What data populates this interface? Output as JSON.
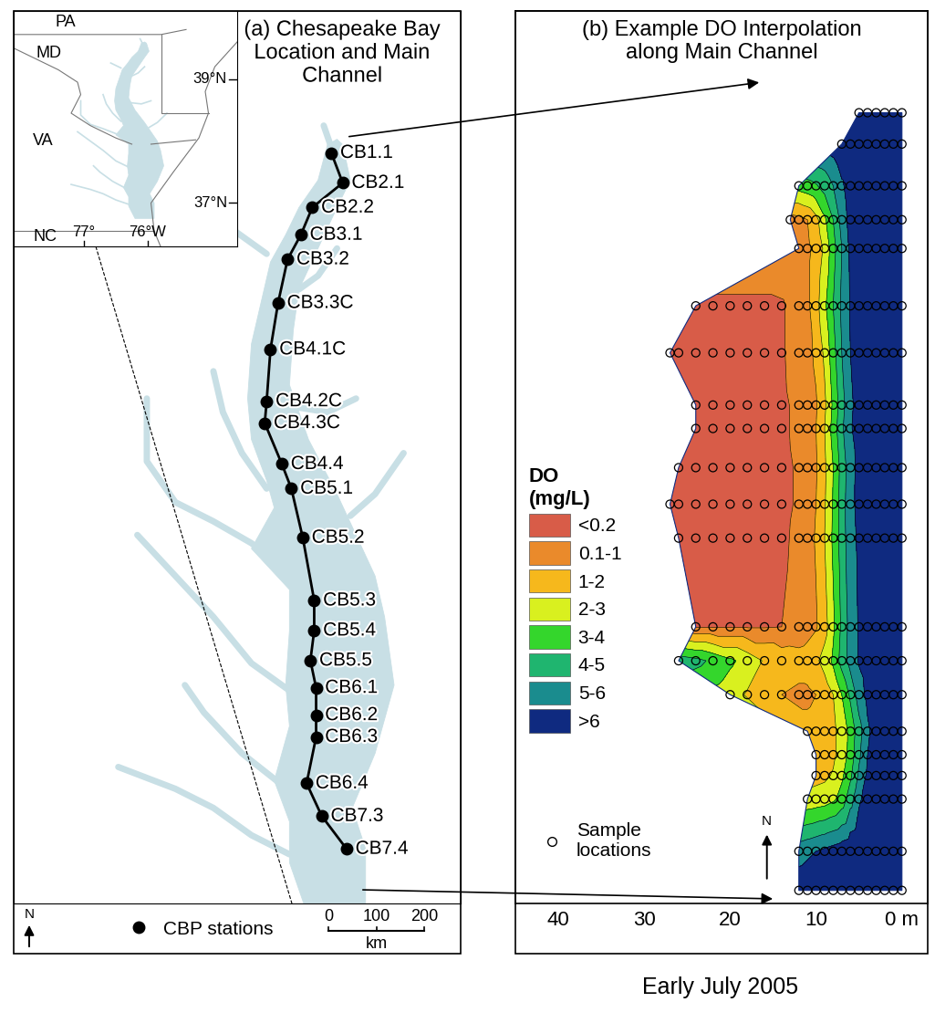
{
  "chart_data": [
    {
      "type": "map",
      "title": "(a) Chesapeake Bay\nLocation and Main\nChannel",
      "xlim": [
        -77.75,
        -75.4
      ],
      "ylim": [
        36.8,
        40.07
      ],
      "tick_labels": false,
      "color": "#c8dfe5",
      "north": "N",
      "stations": {
        "name": "CBP stations",
        "color": "#000000",
        "marker": "o",
        "line_style": "solid",
        "labels": [
          "CB1.1",
          "CB2.1",
          "CB2.2",
          "CB3.1",
          "CB3.2",
          "CB3.3C",
          "CB4.1C",
          "CB4.2C",
          "CB4.3C",
          "CB4.4",
          "CB5.1",
          "CB5.2",
          "CB5.3",
          "CB5.4",
          "CB5.5",
          "CB6.1",
          "CB6.2",
          "CB6.3",
          "CB6.4",
          "CB7.3",
          "CB7.4"
        ],
        "lon": [
          -76.08,
          -76.02,
          -76.18,
          -76.24,
          -76.31,
          -76.36,
          -76.4,
          -76.42,
          -76.43,
          -76.34,
          -76.29,
          -76.23,
          -76.17,
          -76.17,
          -76.19,
          -76.16,
          -76.16,
          -76.16,
          -76.21,
          -76.13,
          -76.0
        ],
        "lat": [
          39.55,
          39.44,
          39.35,
          39.25,
          39.16,
          39.0,
          38.83,
          38.64,
          38.56,
          38.41,
          38.32,
          38.14,
          37.91,
          37.8,
          37.69,
          37.59,
          37.49,
          37.41,
          37.24,
          37.12,
          37.0
        ]
      },
      "inset": {
        "xlim": [
          -78.1,
          -74.6
        ],
        "ylim": [
          36.3,
          40.1
        ],
        "states": [
          "PA",
          "MD",
          "VA",
          "NC"
        ],
        "lat_lines": [
          {
            "value": 39,
            "label": "39°N"
          },
          {
            "value": 37,
            "label": "37°N"
          }
        ],
        "lon_lines": [
          {
            "value": -77,
            "label": "77°"
          },
          {
            "value": -76,
            "label": "76°W"
          }
        ]
      },
      "scale_bar": {
        "ticks": [
          0,
          100,
          200
        ],
        "unit": "km"
      }
    },
    {
      "type": "contour",
      "title": "(b) Example DO Interpolation\nalong Main Channel",
      "xlim": [
        45,
        -3
      ],
      "xticks": [
        40,
        30,
        20,
        10,
        {
          "value": 0,
          "label": "0 m"
        }
      ],
      "ylim": [
        303,
        -39
      ],
      "tick_labels": "x",
      "legend": "center left",
      "legend_title": "DO\n(mg/L)",
      "north": "N",
      "samples": {
        "label": "Sample\nlocations",
        "marker": "o"
      },
      "classes": [
        {
          "label": "<0.2",
          "max": 0.2,
          "color": "#d85c48"
        },
        {
          "label": "0.1-1",
          "max": 1,
          "color": "#ea8a2b"
        },
        {
          "label": "1-2",
          "max": 2,
          "color": "#f6b81c"
        },
        {
          "label": "2-3",
          "max": 3,
          "color": "#d9f01f"
        },
        {
          "label": "3-4",
          "max": 4,
          "color": "#34d62c"
        },
        {
          "label": "4-5",
          "max": 5,
          "color": "#1fb56f"
        },
        {
          "label": "5-6",
          "max": 6,
          "color": "#1a8c8e"
        },
        {
          "label": ">6",
          "max": null,
          "color": "#0f2a80"
        }
      ],
      "profiles": [
        {
          "distance_km": 0,
          "depths": [
            0,
            1,
            2,
            3,
            4,
            5
          ],
          "do": [
            8.2,
            8.2,
            8.1,
            8.0,
            7.9,
            7.8
          ]
        },
        {
          "distance_km": 12,
          "depths": [
            0,
            1,
            2,
            3,
            4,
            5,
            6,
            7
          ],
          "do": [
            8.1,
            8.1,
            8.0,
            7.9,
            7.7,
            7.5,
            7.2,
            7.0
          ]
        },
        {
          "distance_km": 28,
          "depths": [
            0,
            1,
            2,
            3,
            4,
            5,
            6,
            7,
            8,
            9,
            10,
            11,
            12
          ],
          "do": [
            7.9,
            7.9,
            7.8,
            7.6,
            7.4,
            7.1,
            6.6,
            5.8,
            5.0,
            4.4,
            3.9,
            3.6,
            3.4
          ]
        },
        {
          "distance_km": 41,
          "depths": [
            0,
            1,
            2,
            3,
            4,
            5,
            6,
            7,
            8,
            9,
            10,
            11,
            12,
            13
          ],
          "do": [
            7.8,
            7.8,
            7.7,
            7.5,
            7.3,
            7.0,
            6.4,
            5.4,
            4.0,
            2.8,
            1.7,
            1.0,
            0.7,
            0.6
          ]
        },
        {
          "distance_km": 52,
          "depths": [
            0,
            1,
            2,
            3,
            4,
            5,
            6,
            7,
            8,
            9,
            10,
            11,
            12
          ],
          "do": [
            7.8,
            7.8,
            7.6,
            7.4,
            7.2,
            6.8,
            6.2,
            5.0,
            3.6,
            2.2,
            1.3,
            0.8,
            0.6
          ]
        },
        {
          "distance_km": 74,
          "depths": [
            0,
            1,
            2,
            3,
            4,
            5,
            6,
            7,
            8,
            9,
            10,
            11,
            12,
            14,
            16,
            18,
            20,
            22,
            24
          ],
          "do": [
            7.6,
            7.6,
            7.5,
            7.3,
            7.0,
            6.6,
            6.1,
            5.2,
            4.0,
            2.8,
            1.6,
            0.8,
            0.4,
            0.15,
            0.1,
            0.1,
            0.1,
            0.1,
            0.1
          ]
        },
        {
          "distance_km": 92,
          "depths": [
            0,
            1,
            2,
            3,
            4,
            5,
            6,
            7,
            8,
            9,
            10,
            11,
            12,
            14,
            16,
            18,
            20,
            22,
            24,
            26,
            27
          ],
          "do": [
            7.5,
            7.5,
            7.4,
            7.2,
            6.9,
            6.5,
            6.0,
            5.0,
            3.6,
            2.2,
            1.2,
            0.7,
            0.4,
            0.15,
            0.1,
            0.1,
            0.1,
            0.1,
            0.1,
            0.1,
            0.1
          ]
        },
        {
          "distance_km": 112,
          "depths": [
            0,
            1,
            2,
            3,
            4,
            5,
            6,
            7,
            8,
            9,
            10,
            11,
            12,
            14,
            16,
            18,
            20,
            22,
            24
          ],
          "do": [
            7.5,
            7.5,
            7.3,
            7.1,
            6.8,
            6.4,
            5.8,
            4.6,
            3.2,
            1.8,
            0.9,
            0.5,
            0.3,
            0.12,
            0.1,
            0.1,
            0.1,
            0.1,
            0.1
          ]
        },
        {
          "distance_km": 121,
          "depths": [
            0,
            1,
            2,
            3,
            4,
            5,
            6,
            7,
            8,
            9,
            10,
            11,
            12,
            14,
            16,
            18,
            20,
            22,
            24
          ],
          "do": [
            7.4,
            7.4,
            7.3,
            7.1,
            6.8,
            6.4,
            5.9,
            4.8,
            3.4,
            2.0,
            1.0,
            0.5,
            0.3,
            0.12,
            0.1,
            0.1,
            0.1,
            0.1,
            0.1
          ]
        },
        {
          "distance_km": 136,
          "depths": [
            0,
            1,
            2,
            3,
            4,
            5,
            6,
            7,
            8,
            9,
            10,
            11,
            12,
            14,
            16,
            18,
            20,
            22,
            24,
            26
          ],
          "do": [
            7.4,
            7.4,
            7.2,
            7.0,
            6.7,
            6.3,
            5.6,
            4.4,
            3.0,
            1.8,
            0.9,
            0.5,
            0.25,
            0.1,
            0.1,
            0.1,
            0.1,
            0.1,
            0.1,
            0.1
          ]
        },
        {
          "distance_km": 150,
          "depths": [
            0,
            1,
            2,
            3,
            4,
            5,
            6,
            7,
            8,
            9,
            10,
            11,
            12,
            14,
            16,
            18,
            20,
            22,
            24,
            26,
            27
          ],
          "do": [
            7.3,
            7.3,
            7.2,
            7.0,
            6.7,
            6.3,
            5.7,
            4.5,
            3.1,
            1.9,
            1.0,
            0.5,
            0.25,
            0.1,
            0.1,
            0.1,
            0.1,
            0.1,
            0.1,
            0.1,
            0.1
          ]
        },
        {
          "distance_km": 163,
          "depths": [
            0,
            1,
            2,
            3,
            4,
            5,
            6,
            7,
            8,
            9,
            10,
            11,
            12,
            14,
            16,
            18,
            20,
            22,
            24,
            26
          ],
          "do": [
            7.3,
            7.3,
            7.1,
            6.9,
            6.6,
            6.2,
            5.6,
            4.5,
            3.2,
            2.0,
            1.1,
            0.6,
            0.3,
            0.12,
            0.1,
            0.1,
            0.1,
            0.1,
            0.1,
            0.1
          ]
        },
        {
          "distance_km": 197,
          "depths": [
            0,
            1,
            2,
            3,
            4,
            5,
            6,
            7,
            8,
            9,
            10,
            11,
            12,
            14,
            16,
            18,
            20,
            22,
            24
          ],
          "do": [
            7.2,
            7.2,
            7.0,
            6.8,
            6.5,
            6.1,
            5.4,
            4.2,
            2.8,
            1.6,
            0.9,
            0.6,
            0.35,
            0.2,
            0.15,
            0.15,
            0.15,
            0.15,
            0.15
          ]
        },
        {
          "distance_km": 210,
          "depths": [
            0,
            1,
            2,
            3,
            4,
            5,
            6,
            7,
            8,
            9,
            10,
            11,
            12,
            14,
            16,
            18,
            20,
            22,
            24,
            26
          ],
          "do": [
            7.2,
            7.2,
            7.0,
            6.8,
            6.5,
            6.1,
            5.4,
            4.4,
            3.2,
            2.4,
            1.8,
            1.5,
            1.4,
            1.5,
            1.9,
            2.6,
            3.2,
            3.8,
            4.3,
            4.6
          ]
        },
        {
          "distance_km": 223,
          "depths": [
            0,
            1,
            2,
            3,
            4,
            5,
            6,
            7,
            8,
            9,
            10,
            11,
            12,
            14,
            16,
            18,
            20
          ],
          "do": [
            7.1,
            7.1,
            6.9,
            6.7,
            6.3,
            5.5,
            4.2,
            3.0,
            2.0,
            1.4,
            1.0,
            0.8,
            0.8,
            1.0,
            1.4,
            1.9,
            2.4
          ]
        },
        {
          "distance_km": 237,
          "depths": [
            0,
            1,
            2,
            3,
            4,
            5,
            6,
            7,
            8,
            9,
            10,
            11
          ],
          "do": [
            7.0,
            7.0,
            6.8,
            6.5,
            5.8,
            4.6,
            3.3,
            2.4,
            1.8,
            1.5,
            1.4,
            1.3
          ]
        },
        {
          "distance_km": 246,
          "depths": [
            0,
            1,
            2,
            3,
            4,
            5,
            6,
            7,
            8,
            9,
            10
          ],
          "do": [
            7.0,
            7.0,
            6.8,
            6.5,
            6.0,
            4.8,
            3.4,
            2.4,
            1.8,
            1.6,
            1.5
          ]
        },
        {
          "distance_km": 254,
          "depths": [
            0,
            1,
            2,
            3,
            4,
            5,
            6,
            7,
            8,
            9,
            10
          ],
          "do": [
            7.1,
            7.1,
            6.9,
            6.6,
            6.2,
            5.2,
            3.8,
            2.8,
            2.1,
            1.8,
            1.7
          ]
        },
        {
          "distance_km": 263,
          "depths": [
            0,
            1,
            2,
            3,
            4,
            5,
            6,
            7,
            8,
            9,
            10,
            11
          ],
          "do": [
            7.2,
            7.2,
            7.0,
            6.8,
            6.5,
            5.8,
            4.6,
            3.4,
            2.8,
            2.5,
            2.4,
            2.3
          ]
        },
        {
          "distance_km": 283,
          "depths": [
            0,
            1,
            2,
            3,
            4,
            5,
            6,
            7,
            8,
            9,
            10,
            11,
            12
          ],
          "do": [
            7.5,
            7.5,
            7.4,
            7.3,
            7.2,
            7.0,
            6.8,
            6.6,
            6.4,
            6.2,
            6.0,
            5.8,
            5.6
          ]
        },
        {
          "distance_km": 298,
          "depths": [
            0,
            1,
            2,
            3,
            4,
            5,
            6,
            7,
            8,
            9,
            10,
            11,
            12
          ],
          "do": [
            7.6,
            7.6,
            7.5,
            7.5,
            7.4,
            7.3,
            7.2,
            7.1,
            7.0,
            6.9,
            6.8,
            6.7,
            6.6
          ]
        }
      ]
    }
  ],
  "caption": "Early July 2005"
}
